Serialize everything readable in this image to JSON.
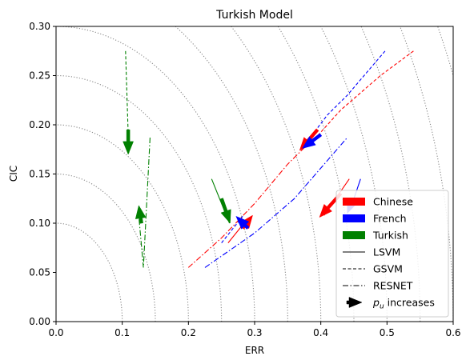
{
  "chart_data": {
    "type": "line",
    "title": "Turkish Model",
    "xlabel": "ERR",
    "ylabel": "CIC",
    "xlim": [
      0.0,
      0.6
    ],
    "ylim": [
      0.0,
      0.3
    ],
    "x_ticks": [
      "0.0",
      "0.1",
      "0.2",
      "0.3",
      "0.4",
      "0.5",
      "0.6"
    ],
    "y_ticks": [
      "0.00",
      "0.05",
      "0.10",
      "0.15",
      "0.20",
      "0.25",
      "0.30"
    ],
    "grid": false,
    "contour_radii": [
      0.1,
      0.15,
      0.2,
      0.25,
      0.3,
      0.35,
      0.4,
      0.45,
      0.5,
      0.55,
      0.6,
      0.65,
      0.7,
      0.75,
      0.8
    ],
    "legend_position": "bottom-right",
    "legend_items": [
      {
        "label": "Chinese",
        "kind": "patch",
        "color": "#ff0000"
      },
      {
        "label": "French",
        "kind": "patch",
        "color": "#0000ff"
      },
      {
        "label": "Turkish",
        "kind": "patch",
        "color": "#008000"
      },
      {
        "label": "LSVM",
        "kind": "line",
        "dash": "solid"
      },
      {
        "label": "GSVM",
        "kind": "line",
        "dash": "dashed"
      },
      {
        "label": "RESNET",
        "kind": "line",
        "dash": "dashdot"
      },
      {
        "label": " increases",
        "kind": "arrow",
        "math_label": "pu"
      }
    ],
    "series": [
      {
        "lang": "Chinese",
        "model": "LSVM",
        "color": "#ff0000",
        "dash": "solid",
        "x": [
          0.443,
          0.405
        ],
        "y": [
          0.145,
          0.108
        ]
      },
      {
        "lang": "Chinese",
        "model": "GSVM",
        "color": "#ff0000",
        "dash": "dashed",
        "x": [
          0.54,
          0.49,
          0.43,
          0.39,
          0.37
        ],
        "y": [
          0.275,
          0.25,
          0.215,
          0.185,
          0.175
        ]
      },
      {
        "lang": "Chinese",
        "model": "RESNET",
        "color": "#ff0000",
        "dash": "dashdot",
        "x": [
          0.2,
          0.25,
          0.3,
          0.35,
          0.38
        ],
        "y": [
          0.055,
          0.085,
          0.12,
          0.16,
          0.18
        ]
      },
      {
        "lang": "Chinese",
        "model": "LSVM",
        "color": "#ff0000",
        "dash": "solid",
        "x": [
          0.26,
          0.29
        ],
        "y": [
          0.08,
          0.105
        ]
      },
      {
        "lang": "French",
        "model": "LSVM",
        "color": "#0000ff",
        "dash": "solid",
        "x": [
          0.46,
          0.445
        ],
        "y": [
          0.145,
          0.115
        ]
      },
      {
        "lang": "French",
        "model": "GSVM",
        "color": "#0000ff",
        "dash": "dashed",
        "x": [
          0.497,
          0.44,
          0.41,
          0.385,
          0.375
        ],
        "y": [
          0.275,
          0.23,
          0.21,
          0.188,
          0.178
        ]
      },
      {
        "lang": "French",
        "model": "RESNET",
        "color": "#0000ff",
        "dash": "dashdot",
        "x": [
          0.225,
          0.3,
          0.36,
          0.44
        ],
        "y": [
          0.055,
          0.09,
          0.125,
          0.187
        ]
      },
      {
        "lang": "French",
        "model": "GSVM",
        "color": "#0000ff",
        "dash": "dashed",
        "x": [
          0.25,
          0.282
        ],
        "y": [
          0.08,
          0.107
        ]
      },
      {
        "lang": "Turkish",
        "model": "LSVM",
        "color": "#008000",
        "dash": "solid",
        "x": [
          0.235,
          0.262
        ],
        "y": [
          0.145,
          0.1
        ]
      },
      {
        "lang": "Turkish",
        "model": "GSVM",
        "color": "#008000",
        "dash": "dashed",
        "x": [
          0.105,
          0.11
        ],
        "y": [
          0.275,
          0.17
        ]
      },
      {
        "lang": "Turkish",
        "model": "RESNET",
        "color": "#008000",
        "dash": "dashdot",
        "x": [
          0.142,
          0.132,
          0.124
        ],
        "y": [
          0.187,
          0.055,
          0.115
        ]
      }
    ],
    "arrows": [
      {
        "color": "#ff0000",
        "x_from": 0.43,
        "y_from": 0.13,
        "x_to": 0.398,
        "y_to": 0.106
      },
      {
        "color": "#ff0000",
        "x_from": 0.395,
        "y_from": 0.195,
        "x_to": 0.368,
        "y_to": 0.174
      },
      {
        "color": "#ff0000",
        "x_from": 0.282,
        "y_from": 0.095,
        "x_to": 0.297,
        "y_to": 0.108
      },
      {
        "color": "#0000ff",
        "x_from": 0.4,
        "y_from": 0.19,
        "x_to": 0.372,
        "y_to": 0.176
      },
      {
        "color": "#0000ff",
        "x_from": 0.29,
        "y_from": 0.095,
        "x_to": 0.272,
        "y_to": 0.107
      },
      {
        "color": "#0000ff",
        "x_from": 0.446,
        "y_from": 0.12,
        "x_to": 0.44,
        "y_to": 0.11
      },
      {
        "color": "#008000",
        "x_from": 0.25,
        "y_from": 0.125,
        "x_to": 0.263,
        "y_to": 0.1
      },
      {
        "color": "#008000",
        "x_from": 0.109,
        "y_from": 0.195,
        "x_to": 0.109,
        "y_to": 0.17
      },
      {
        "color": "#008000",
        "x_from": 0.129,
        "y_from": 0.1,
        "x_to": 0.125,
        "y_to": 0.118
      }
    ]
  }
}
